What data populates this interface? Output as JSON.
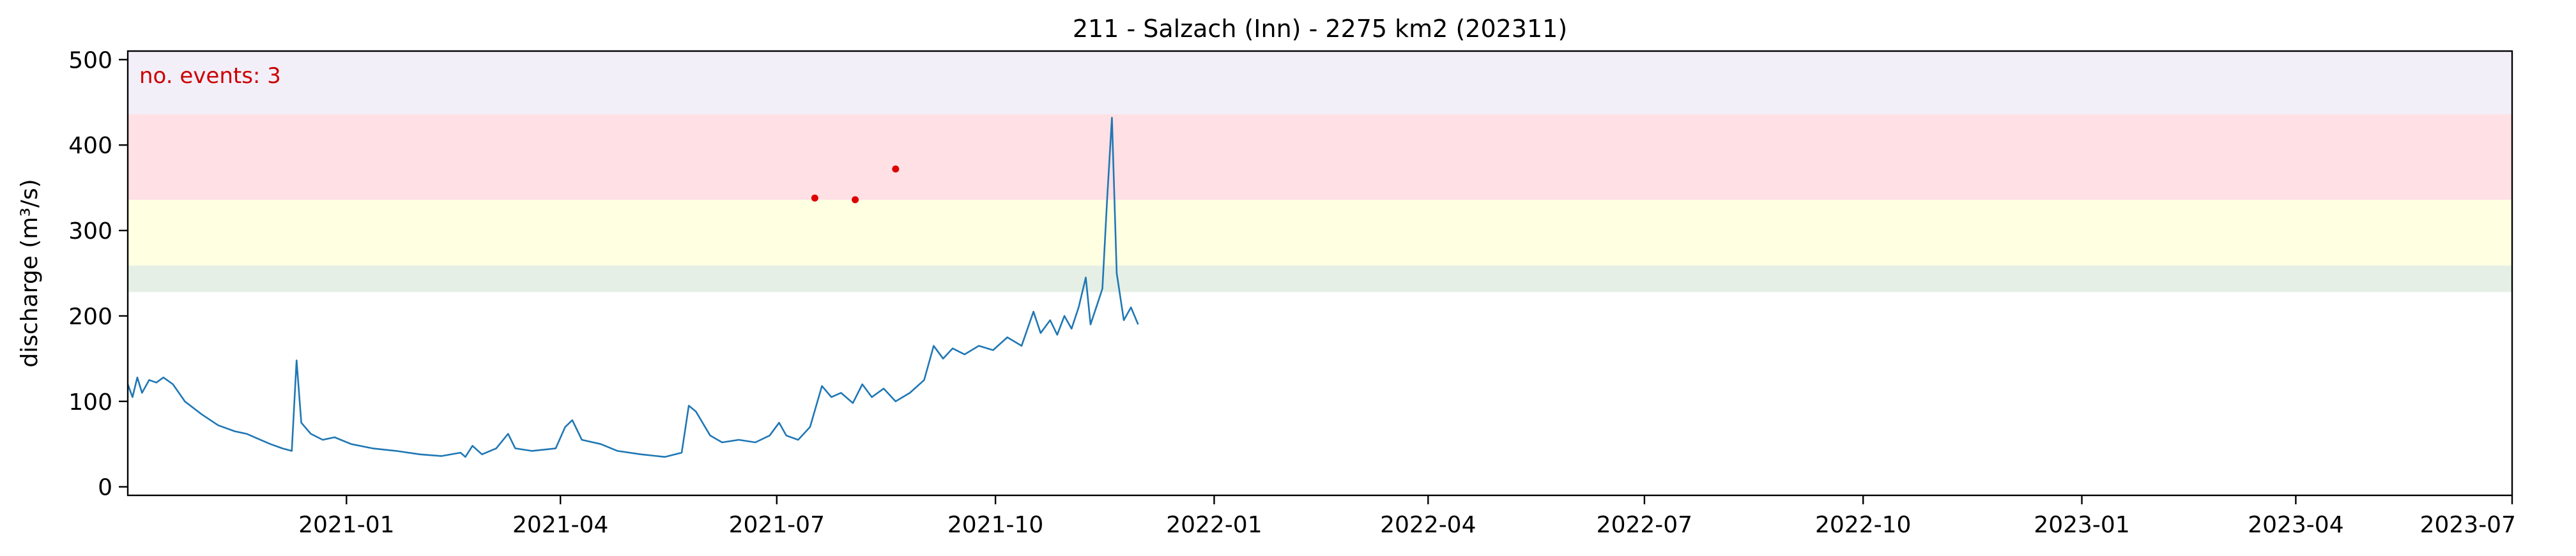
{
  "chart_data": {
    "type": "line",
    "title": "211 - Salzach (Inn) - 2275 km2 (202311)",
    "ylabel": "discharge (m³/s)",
    "xlabel": "",
    "xlim": [
      "2020-10-01",
      "2023-07-01"
    ],
    "ylim": [
      -10,
      510
    ],
    "x_ticks": [
      "2021-01",
      "2021-04",
      "2021-07",
      "2021-10",
      "2022-01",
      "2022-04",
      "2022-07",
      "2022-10",
      "2023-01",
      "2023-04",
      "2023-07"
    ],
    "y_ticks": [
      0,
      100,
      200,
      300,
      400,
      500
    ],
    "grid": false,
    "annotation": "no. events: 3",
    "colors": {
      "line": "#1f77b4",
      "events": "#dd0000",
      "annotation": "#cc0000",
      "band_green": "#e5efe5",
      "band_yellow": "#ffffe2",
      "band_red": "#ffe0e4",
      "band_purple": "#f2eff9"
    },
    "thresholds": [
      {
        "from": 228,
        "to": 259,
        "color": "#e5efe5"
      },
      {
        "from": 259,
        "to": 336,
        "color": "#ffffe2"
      },
      {
        "from": 336,
        "to": 436,
        "color": "#ffe0e4"
      },
      {
        "from": 436,
        "to": 510,
        "color": "#f2eff9"
      }
    ],
    "events": [
      {
        "x": "2021-07-17",
        "y": 338
      },
      {
        "x": "2021-08-03",
        "y": 336
      },
      {
        "x": "2021-08-20",
        "y": 372
      }
    ],
    "series": [
      {
        "values": [
          [
            "2020-10-01",
            120
          ],
          [
            "2020-10-03",
            105
          ],
          [
            "2020-10-05",
            128
          ],
          [
            "2020-10-07",
            110
          ],
          [
            "2020-10-10",
            125
          ],
          [
            "2020-10-13",
            122
          ],
          [
            "2020-10-16",
            128
          ],
          [
            "2020-10-20",
            120
          ],
          [
            "2020-10-25",
            100
          ],
          [
            "2020-11-01",
            85
          ],
          [
            "2020-11-08",
            72
          ],
          [
            "2020-11-15",
            65
          ],
          [
            "2020-11-20",
            62
          ],
          [
            "2020-11-25",
            56
          ],
          [
            "2020-11-30",
            50
          ],
          [
            "2020-12-05",
            45
          ],
          [
            "2020-12-09",
            42
          ],
          [
            "2020-12-11",
            148
          ],
          [
            "2020-12-13",
            75
          ],
          [
            "2020-12-17",
            62
          ],
          [
            "2020-12-22",
            55
          ],
          [
            "2020-12-27",
            58
          ],
          [
            "2021-01-03",
            50
          ],
          [
            "2021-01-12",
            45
          ],
          [
            "2021-01-22",
            42
          ],
          [
            "2021-02-01",
            38
          ],
          [
            "2021-02-10",
            36
          ],
          [
            "2021-02-18",
            40
          ],
          [
            "2021-02-20",
            35
          ],
          [
            "2021-02-23",
            48
          ],
          [
            "2021-02-27",
            38
          ],
          [
            "2021-03-05",
            45
          ],
          [
            "2021-03-10",
            62
          ],
          [
            "2021-03-13",
            45
          ],
          [
            "2021-03-20",
            42
          ],
          [
            "2021-03-30",
            45
          ],
          [
            "2021-04-03",
            70
          ],
          [
            "2021-04-06",
            78
          ],
          [
            "2021-04-10",
            55
          ],
          [
            "2021-04-18",
            50
          ],
          [
            "2021-04-25",
            42
          ],
          [
            "2021-05-05",
            38
          ],
          [
            "2021-05-15",
            35
          ],
          [
            "2021-05-22",
            40
          ],
          [
            "2021-05-25",
            95
          ],
          [
            "2021-05-28",
            88
          ],
          [
            "2021-06-03",
            60
          ],
          [
            "2021-06-08",
            52
          ],
          [
            "2021-06-15",
            55
          ],
          [
            "2021-06-22",
            52
          ],
          [
            "2021-06-28",
            60
          ],
          [
            "2021-07-02",
            75
          ],
          [
            "2021-07-05",
            60
          ],
          [
            "2021-07-10",
            55
          ],
          [
            "2021-07-15",
            70
          ],
          [
            "2021-07-20",
            118
          ],
          [
            "2021-07-24",
            105
          ],
          [
            "2021-07-28",
            110
          ],
          [
            "2021-08-02",
            98
          ],
          [
            "2021-08-06",
            120
          ],
          [
            "2021-08-10",
            105
          ],
          [
            "2021-08-15",
            115
          ],
          [
            "2021-08-20",
            100
          ],
          [
            "2021-08-26",
            110
          ],
          [
            "2021-09-01",
            125
          ],
          [
            "2021-09-05",
            165
          ],
          [
            "2021-09-09",
            150
          ],
          [
            "2021-09-13",
            162
          ],
          [
            "2021-09-18",
            155
          ],
          [
            "2021-09-24",
            165
          ],
          [
            "2021-09-30",
            160
          ],
          [
            "2021-10-06",
            175
          ],
          [
            "2021-10-12",
            165
          ],
          [
            "2021-10-17",
            205
          ],
          [
            "2021-10-20",
            180
          ],
          [
            "2021-10-24",
            195
          ],
          [
            "2021-10-27",
            178
          ],
          [
            "2021-10-30",
            200
          ],
          [
            "2021-11-02",
            185
          ],
          [
            "2021-11-05",
            210
          ],
          [
            "2021-11-08",
            245
          ],
          [
            "2021-11-10",
            190
          ],
          [
            "2021-11-13",
            215
          ],
          [
            "2021-11-15",
            232
          ],
          [
            "2021-11-17",
            338
          ],
          [
            "2021-11-19",
            432
          ],
          [
            "2021-11-21",
            250
          ],
          [
            "2021-11-24",
            195
          ],
          [
            "2021-11-27",
            210
          ],
          [
            "2021-11-30",
            190
          ]
        ]
      }
    ]
  }
}
